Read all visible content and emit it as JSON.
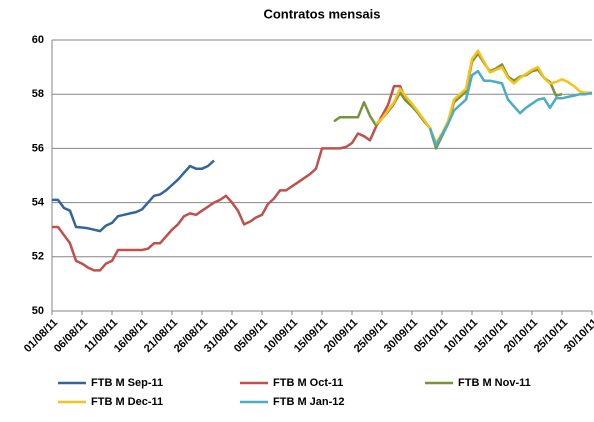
{
  "chart_data": {
    "type": "line",
    "title": "Contratos mensais",
    "categories": [
      "01/08/11",
      null,
      null,
      null,
      null,
      "06/08/11",
      null,
      null,
      null,
      null,
      "11/08/11",
      null,
      null,
      null,
      null,
      "16/08/11",
      null,
      null,
      null,
      null,
      "21/08/11",
      null,
      null,
      null,
      null,
      "26/08/11",
      null,
      null,
      null,
      null,
      "31/08/11",
      null,
      null,
      null,
      null,
      "05/09/11",
      null,
      null,
      null,
      null,
      "10/09/11",
      null,
      null,
      null,
      null,
      "15/09/11",
      null,
      null,
      null,
      null,
      "20/09/11",
      null,
      null,
      null,
      null,
      "25/09/11",
      null,
      null,
      null,
      null,
      "30/09/11",
      null,
      null,
      null,
      null,
      "05/10/11",
      null,
      null,
      null,
      null,
      "10/10/11",
      null,
      null,
      null,
      null,
      "15/10/11",
      null,
      null,
      null,
      null,
      "20/10/11",
      null,
      null,
      null,
      null,
      "25/10/11",
      null,
      null,
      null,
      null,
      "30/10/11"
    ],
    "series": [
      {
        "name": "FTB M Sep-11",
        "color": "#35649c",
        "values": [
          54.1,
          54.1,
          53.8,
          53.7,
          53.1,
          53.08,
          53.05,
          53.0,
          52.95,
          53.15,
          53.25,
          53.5,
          53.55,
          53.6,
          53.65,
          53.75,
          54.0,
          54.25,
          54.3,
          54.45,
          54.65,
          54.85,
          55.1,
          55.35,
          55.25,
          55.25,
          55.35,
          55.55,
          null,
          null,
          null,
          null,
          null,
          null,
          null,
          null,
          null,
          null,
          null,
          null,
          null,
          null,
          null,
          null,
          null,
          null,
          null,
          null,
          null,
          null,
          null,
          null,
          null,
          null,
          null,
          null,
          null,
          null,
          null,
          null,
          null,
          null,
          null,
          null,
          null,
          null,
          null,
          null,
          null,
          null,
          null,
          null,
          null,
          null,
          null,
          null,
          null,
          null,
          null,
          null,
          null,
          null,
          null,
          null,
          null,
          null,
          null,
          null,
          null,
          null,
          null
        ]
      },
      {
        "name": "FTB M Oct-11",
        "color": "#c0504d",
        "values": [
          53.1,
          53.1,
          52.8,
          52.5,
          51.85,
          51.75,
          51.6,
          51.5,
          51.5,
          51.75,
          51.85,
          52.25,
          52.25,
          52.25,
          52.25,
          52.25,
          52.3,
          52.5,
          52.5,
          52.75,
          53.0,
          53.2,
          53.5,
          53.6,
          53.55,
          53.7,
          53.85,
          54.0,
          54.1,
          54.25,
          54.0,
          53.7,
          53.2,
          53.3,
          53.45,
          53.55,
          53.95,
          54.15,
          54.45,
          54.45,
          54.6,
          54.75,
          54.9,
          55.05,
          55.25,
          56.0,
          56.0,
          56.0,
          56.0,
          56.05,
          56.2,
          56.55,
          56.45,
          56.3,
          56.8,
          57.2,
          57.6,
          58.3,
          58.3,
          57.8,
          57.55,
          null,
          null,
          null,
          null,
          null,
          null,
          null,
          null,
          null,
          null,
          null,
          null,
          null,
          null,
          null,
          null,
          null,
          null,
          null,
          null,
          null,
          null,
          null,
          null,
          null,
          null,
          null,
          null,
          null,
          null
        ]
      },
      {
        "name": "FTB M Nov-11",
        "color": "#77933c",
        "values": [
          null,
          null,
          null,
          null,
          null,
          null,
          null,
          null,
          null,
          null,
          null,
          null,
          null,
          null,
          null,
          null,
          null,
          null,
          null,
          null,
          null,
          null,
          null,
          null,
          null,
          null,
          null,
          null,
          null,
          null,
          null,
          null,
          null,
          null,
          null,
          null,
          null,
          null,
          null,
          null,
          null,
          null,
          null,
          null,
          null,
          null,
          null,
          57.0,
          57.15,
          57.15,
          57.15,
          57.15,
          57.7,
          57.2,
          56.85,
          57.1,
          57.35,
          57.65,
          58.05,
          57.75,
          57.55,
          57.3,
          57.0,
          56.75,
          56.0,
          56.45,
          56.9,
          57.7,
          57.9,
          58.1,
          59.2,
          59.5,
          59.15,
          58.85,
          58.95,
          59.1,
          58.65,
          58.5,
          58.65,
          58.7,
          58.85,
          58.9,
          58.6,
          58.45,
          57.95,
          58.0,
          null,
          null,
          null,
          null,
          null
        ]
      },
      {
        "name": "FTB M Dec-11",
        "color": "#f7c21a",
        "values": [
          null,
          null,
          null,
          null,
          null,
          null,
          null,
          null,
          null,
          null,
          null,
          null,
          null,
          null,
          null,
          null,
          null,
          null,
          null,
          null,
          null,
          null,
          null,
          null,
          null,
          null,
          null,
          null,
          null,
          null,
          null,
          null,
          null,
          null,
          null,
          null,
          null,
          null,
          null,
          null,
          null,
          null,
          null,
          null,
          null,
          null,
          null,
          null,
          null,
          null,
          null,
          null,
          null,
          null,
          56.9,
          57.1,
          57.4,
          57.7,
          58.2,
          57.9,
          57.65,
          57.35,
          57.05,
          56.75,
          56.2,
          56.55,
          57.0,
          57.8,
          58.0,
          58.2,
          59.3,
          59.6,
          59.2,
          58.8,
          58.9,
          59.0,
          58.6,
          58.4,
          58.6,
          58.75,
          58.9,
          59.0,
          58.6,
          58.4,
          58.45,
          58.55,
          58.45,
          58.3,
          58.1,
          58.05,
          58.05
        ]
      },
      {
        "name": "FTB M Jan-12",
        "color": "#4bacc6",
        "values": [
          null,
          null,
          null,
          null,
          null,
          null,
          null,
          null,
          null,
          null,
          null,
          null,
          null,
          null,
          null,
          null,
          null,
          null,
          null,
          null,
          null,
          null,
          null,
          null,
          null,
          null,
          null,
          null,
          null,
          null,
          null,
          null,
          null,
          null,
          null,
          null,
          null,
          null,
          null,
          null,
          null,
          null,
          null,
          null,
          null,
          null,
          null,
          null,
          null,
          null,
          null,
          null,
          null,
          null,
          null,
          null,
          null,
          null,
          null,
          null,
          null,
          null,
          null,
          56.75,
          56.1,
          56.5,
          56.9,
          57.4,
          57.6,
          57.8,
          58.7,
          58.85,
          58.5,
          58.5,
          58.45,
          58.4,
          57.8,
          57.55,
          57.3,
          57.5,
          57.65,
          57.8,
          57.85,
          57.5,
          57.85,
          57.85,
          57.9,
          57.95,
          58.0,
          58.0,
          58.05
        ]
      }
    ],
    "ylim": [
      50,
      60
    ],
    "yticks": [
      50,
      52,
      54,
      56,
      58,
      60
    ],
    "grid": true,
    "legend": "bottom"
  }
}
